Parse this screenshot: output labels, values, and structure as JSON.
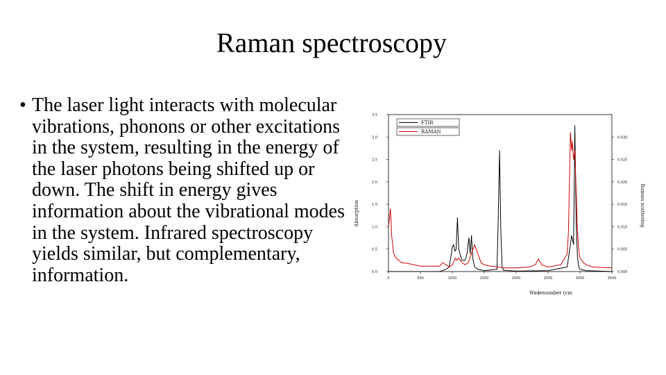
{
  "slide": {
    "title": "Raman spectroscopy",
    "bullet_marker": "•",
    "bullet_text": "The laser light interacts with molecular vibrations, phonons or other excitations in the system, resulting in the energy of the laser photons being shifted up or down. The shift in energy gives information about the vibrational modes in the system. Infrared spectroscopy yields similar, but complementary, information."
  },
  "chart_data": {
    "type": "line",
    "xlabel": "Wavenumber (cm",
    "xlabel_suffix": ")",
    "ylabel_left": "Absorption",
    "ylabel_right": "Raman scattering",
    "xlim": [
      0,
      3500
    ],
    "ylim_left": [
      0,
      3.5
    ],
    "ylim_right": [
      0,
      0.035
    ],
    "x_ticks": [
      "0",
      "500",
      "1000",
      "1500",
      "2000",
      "2500",
      "3000",
      "3500"
    ],
    "y_ticks_left": [
      "0.0",
      "0.5",
      "1.0",
      "1.5",
      "2.0",
      "2.5",
      "3.0",
      "3.5"
    ],
    "y_ticks_right": [
      "0.000",
      "0.005",
      "0.010",
      "0.015",
      "0.020",
      "0.025",
      "0.030"
    ],
    "grid": false,
    "legend": "top-left",
    "series": [
      {
        "name": "FTIR",
        "color": "#000000",
        "axis": "left",
        "x": [
          0,
          400,
          800,
          900,
          950,
          980,
          1000,
          1020,
          1040,
          1060,
          1080,
          1100,
          1150,
          1200,
          1230,
          1260,
          1280,
          1300,
          1320,
          1350,
          1400,
          1500,
          1700,
          1720,
          1740,
          1760,
          1780,
          1800,
          2000,
          2500,
          2800,
          2850,
          2870,
          2900,
          2920,
          2940,
          2960,
          2980,
          3000,
          3100,
          3500
        ],
        "y": [
          0.0,
          0.0,
          0.0,
          0.05,
          0.1,
          0.35,
          0.55,
          0.6,
          0.45,
          0.5,
          1.2,
          0.5,
          0.25,
          0.25,
          0.4,
          0.75,
          0.4,
          0.8,
          0.3,
          0.1,
          0.05,
          0.02,
          0.05,
          1.2,
          2.7,
          0.9,
          0.1,
          0.03,
          0.01,
          0.02,
          0.1,
          0.6,
          0.8,
          0.6,
          3.25,
          1.1,
          0.35,
          0.1,
          0.05,
          0.02,
          0.0
        ]
      },
      {
        "name": "RAMAN",
        "color": "#cc0000",
        "axis": "right",
        "x": [
          0,
          30,
          50,
          80,
          120,
          200,
          300,
          400,
          500,
          600,
          700,
          800,
          850,
          900,
          950,
          1000,
          1050,
          1070,
          1100,
          1150,
          1200,
          1250,
          1300,
          1350,
          1400,
          1450,
          1500,
          1600,
          1700,
          1800,
          2000,
          2200,
          2300,
          2350,
          2400,
          2500,
          2700,
          2800,
          2820,
          2850,
          2870,
          2880,
          2900,
          2920,
          2940,
          2960,
          2980,
          3000,
          3050,
          3100,
          3200,
          3500
        ],
        "y": [
          0.01,
          0.014,
          0.008,
          0.004,
          0.003,
          0.002,
          0.0018,
          0.0015,
          0.0012,
          0.0012,
          0.0012,
          0.0012,
          0.002,
          0.0015,
          0.001,
          0.0015,
          0.003,
          0.0025,
          0.003,
          0.002,
          0.0015,
          0.002,
          0.004,
          0.006,
          0.004,
          0.002,
          0.0015,
          0.0012,
          0.001,
          0.0008,
          0.0008,
          0.001,
          0.0015,
          0.0028,
          0.0015,
          0.001,
          0.0015,
          0.004,
          0.009,
          0.031,
          0.027,
          0.029,
          0.025,
          0.027,
          0.018,
          0.009,
          0.005,
          0.003,
          0.002,
          0.0015,
          0.001,
          0.0008
        ]
      }
    ]
  }
}
